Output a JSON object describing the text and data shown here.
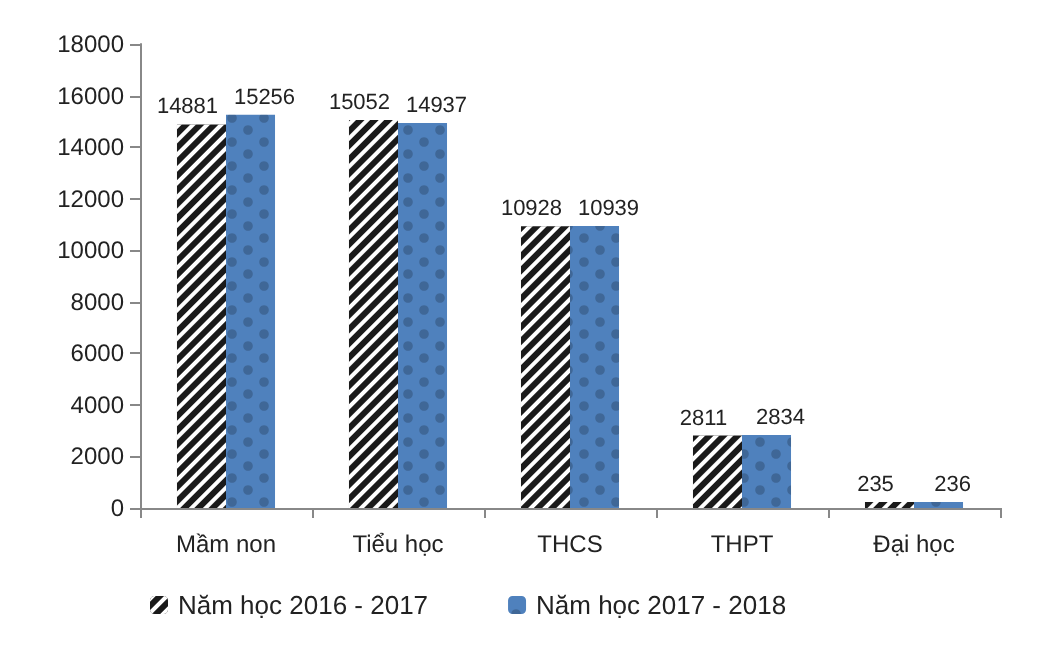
{
  "chart_data": {
    "type": "bar",
    "categories": [
      "Mầm non",
      "Tiểu học",
      "THCS",
      "THPT",
      "Đại học"
    ],
    "series": [
      {
        "name": "Năm học 2016 - 2017",
        "color": "#1a1a1a",
        "values": [
          14881,
          15052,
          10928,
          2811,
          235
        ]
      },
      {
        "name": "Năm học 2017 - 2018",
        "color": "#4f81bd",
        "values": [
          15256,
          14937,
          10939,
          2834,
          236
        ]
      }
    ],
    "ylim": [
      0,
      18000
    ],
    "yticks": [
      0,
      2000,
      4000,
      6000,
      8000,
      10000,
      12000,
      14000,
      16000,
      18000
    ],
    "data_labels": true,
    "grid": false,
    "legend": "bottom left"
  }
}
